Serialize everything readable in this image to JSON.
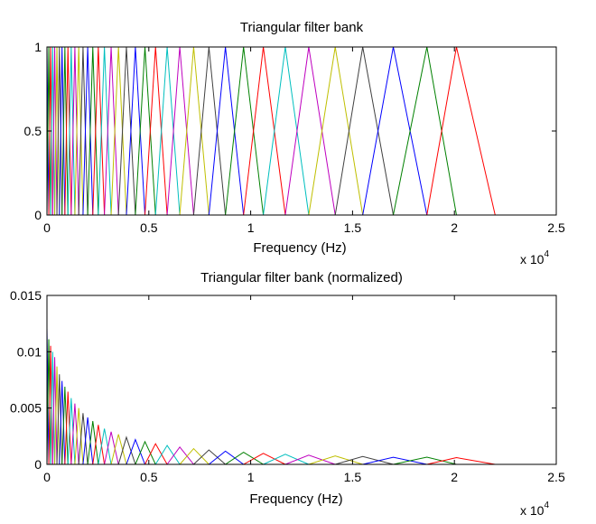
{
  "chart_data": [
    {
      "type": "line",
      "title": "Triangular filter bank",
      "xlabel": "Frequency (Hz)",
      "ylabel": "",
      "xlim": [
        0,
        25000
      ],
      "ylim": [
        0,
        1
      ],
      "xticks": [
        0,
        5000,
        10000,
        15000,
        20000,
        25000
      ],
      "xtick_labels": [
        "0",
        "0.5",
        "1",
        "1.5",
        "2",
        "2.5"
      ],
      "yticks": [
        0,
        0.5,
        1
      ],
      "ytick_labels": [
        "0",
        "0.5",
        "1"
      ],
      "x_multiplier_label": "x 10",
      "x_multiplier_exponent": "4",
      "normalized": false,
      "colors": [
        "#0000ff",
        "#008000",
        "#ff0000",
        "#00bfbf",
        "#bf00bf",
        "#bfbf00",
        "#404040"
      ],
      "filter_peaks_hz": [
        0,
        90,
        180,
        280,
        380,
        490,
        610,
        740,
        880,
        1030,
        1190,
        1370,
        1560,
        1770,
        2000,
        2250,
        2520,
        2820,
        3150,
        3510,
        3900,
        4340,
        4810,
        5330,
        5900,
        6520,
        7200,
        7950,
        8760,
        9650,
        10620,
        11700,
        12850,
        14150,
        15500,
        17000,
        18650,
        20100
      ],
      "last_edge_hz": 22000
    },
    {
      "type": "line",
      "title": "Triangular filter bank (normalized)",
      "xlabel": "Frequency (Hz)",
      "ylabel": "",
      "xlim": [
        0,
        25000
      ],
      "ylim": [
        0,
        0.015
      ],
      "xticks": [
        0,
        5000,
        10000,
        15000,
        20000,
        25000
      ],
      "xtick_labels": [
        "0",
        "0.5",
        "1",
        "1.5",
        "2",
        "2.5"
      ],
      "yticks": [
        0,
        0.005,
        0.01,
        0.015
      ],
      "ytick_labels": [
        "0",
        "0.005",
        "0.01",
        "0.015"
      ],
      "x_multiplier_label": "x 10",
      "x_multiplier_exponent": "4",
      "normalized": true,
      "colors": [
        "#0000ff",
        "#008000",
        "#ff0000",
        "#00bfbf",
        "#bf00bf",
        "#bfbf00",
        "#404040"
      ],
      "filter_peaks_hz": [
        0,
        90,
        180,
        280,
        380,
        490,
        610,
        740,
        880,
        1030,
        1190,
        1370,
        1560,
        1770,
        2000,
        2250,
        2520,
        2820,
        3150,
        3510,
        3900,
        4340,
        4810,
        5330,
        5900,
        6520,
        7200,
        7950,
        8760,
        9650,
        10620,
        11700,
        12850,
        14150,
        15500,
        17000,
        18650,
        20100
      ],
      "last_edge_hz": 22000
    }
  ]
}
